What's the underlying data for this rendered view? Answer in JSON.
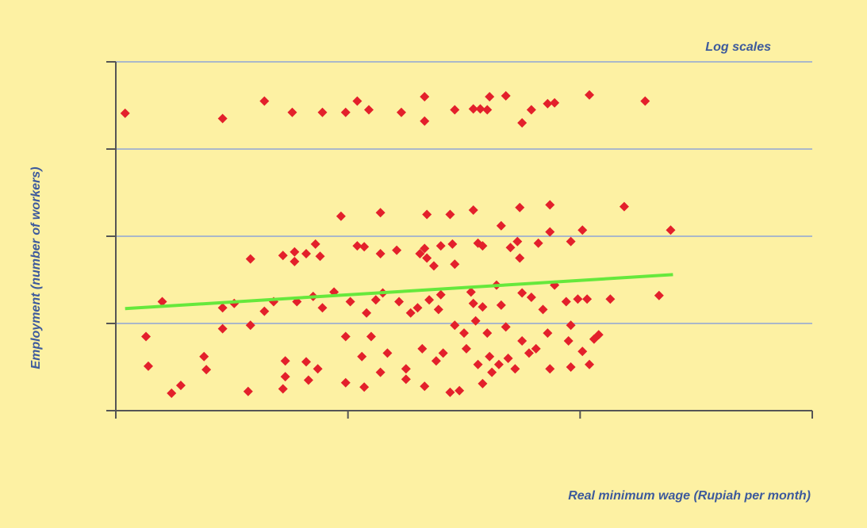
{
  "chart_data": {
    "type": "scatter",
    "annotation": "Log scales",
    "x_label": "Real minimum wage (Rupiah per month)",
    "y_label": "Employment (number of workers)",
    "xlim": [
      0,
      3
    ],
    "ylim": [
      0,
      4
    ],
    "xticks": [
      0,
      1,
      2,
      3
    ],
    "yticks": [
      0,
      1,
      2,
      3,
      4
    ],
    "grid": true,
    "grid_color": "#8fa6d6",
    "axis_color": "#555555",
    "series": [
      {
        "type": "scatter",
        "color": "#e3202b",
        "x": [
          0.04,
          0.46,
          0.64,
          0.76,
          0.89,
          0.99,
          1.04,
          1.09,
          1.23,
          1.33,
          1.33,
          1.46,
          1.54,
          1.57,
          1.6,
          1.61,
          1.68,
          1.75,
          1.79,
          1.86,
          1.89,
          2.04,
          2.28,
          0.97,
          1.14,
          1.34,
          1.44,
          1.54,
          1.66,
          1.74,
          1.87,
          2.19,
          2.39,
          1.87,
          2.01,
          1.96,
          1.82,
          1.73,
          1.7,
          1.56,
          1.58,
          1.45,
          1.4,
          1.33,
          1.31,
          1.21,
          1.14,
          1.04,
          1.07,
          0.77,
          0.82,
          0.86,
          0.88,
          0.72,
          0.58,
          0.77,
          1.37,
          1.46,
          1.74,
          1.34,
          0.2,
          0.13,
          0.14,
          0.24,
          0.28,
          0.38,
          0.39,
          0.46,
          0.46,
          0.51,
          0.57,
          0.58,
          0.64,
          0.68,
          0.73,
          0.72,
          0.73,
          0.78,
          0.82,
          0.83,
          0.87,
          0.85,
          0.89,
          0.94,
          0.99,
          0.99,
          1.01,
          1.06,
          1.07,
          1.08,
          1.1,
          1.12,
          1.15,
          1.14,
          1.17,
          1.22,
          1.25,
          1.25,
          1.27,
          1.3,
          1.32,
          1.33,
          1.35,
          1.38,
          1.4,
          1.39,
          1.41,
          1.44,
          1.48,
          1.46,
          1.5,
          1.51,
          1.53,
          1.54,
          1.55,
          1.56,
          1.58,
          1.6,
          1.61,
          1.58,
          1.62,
          1.64,
          1.66,
          1.68,
          1.65,
          1.69,
          1.72,
          1.75,
          1.75,
          1.78,
          1.79,
          1.81,
          1.84,
          1.86,
          1.87,
          1.89,
          1.94,
          1.95,
          1.96,
          1.96,
          1.99,
          2.01,
          2.03,
          2.04,
          2.06,
          2.08,
          2.13,
          2.34
        ],
        "values": [
          3.41,
          3.35,
          3.55,
          3.42,
          3.42,
          3.42,
          3.55,
          3.45,
          3.42,
          3.6,
          3.32,
          3.45,
          3.46,
          3.46,
          3.45,
          3.6,
          3.61,
          3.3,
          3.45,
          3.52,
          3.53,
          3.62,
          3.55,
          2.23,
          2.27,
          2.25,
          2.25,
          2.3,
          2.12,
          2.33,
          2.36,
          2.34,
          2.07,
          2.05,
          2.07,
          1.94,
          1.92,
          1.94,
          1.87,
          1.92,
          1.89,
          1.91,
          1.89,
          1.86,
          1.8,
          1.84,
          1.8,
          1.89,
          1.88,
          1.82,
          1.8,
          1.91,
          1.77,
          1.78,
          1.74,
          1.71,
          1.66,
          1.68,
          1.75,
          1.75,
          1.25,
          0.85,
          0.51,
          0.2,
          0.29,
          0.62,
          0.47,
          1.18,
          0.94,
          1.23,
          0.22,
          0.98,
          1.14,
          1.25,
          0.57,
          0.25,
          0.39,
          1.25,
          0.56,
          0.35,
          0.48,
          1.31,
          1.18,
          1.36,
          0.85,
          0.32,
          1.25,
          0.62,
          0.27,
          1.12,
          0.85,
          1.27,
          1.35,
          0.44,
          0.66,
          1.25,
          0.36,
          0.48,
          1.12,
          1.18,
          0.71,
          0.28,
          1.27,
          0.57,
          1.33,
          1.16,
          0.66,
          0.21,
          0.23,
          0.98,
          0.89,
          0.71,
          1.36,
          1.23,
          1.03,
          0.53,
          1.19,
          0.89,
          0.62,
          0.31,
          0.44,
          1.44,
          1.21,
          0.96,
          0.53,
          0.6,
          0.48,
          1.35,
          0.8,
          0.66,
          1.3,
          0.71,
          1.16,
          0.89,
          0.48,
          1.44,
          1.25,
          0.8,
          0.98,
          0.5,
          1.28,
          0.68,
          1.28,
          0.53,
          0.82,
          0.87,
          1.28,
          1.32
        ]
      },
      {
        "type": "line",
        "color": "#66e83c",
        "x": [
          0.04,
          2.4
        ],
        "values": [
          1.17,
          1.56
        ]
      }
    ]
  }
}
